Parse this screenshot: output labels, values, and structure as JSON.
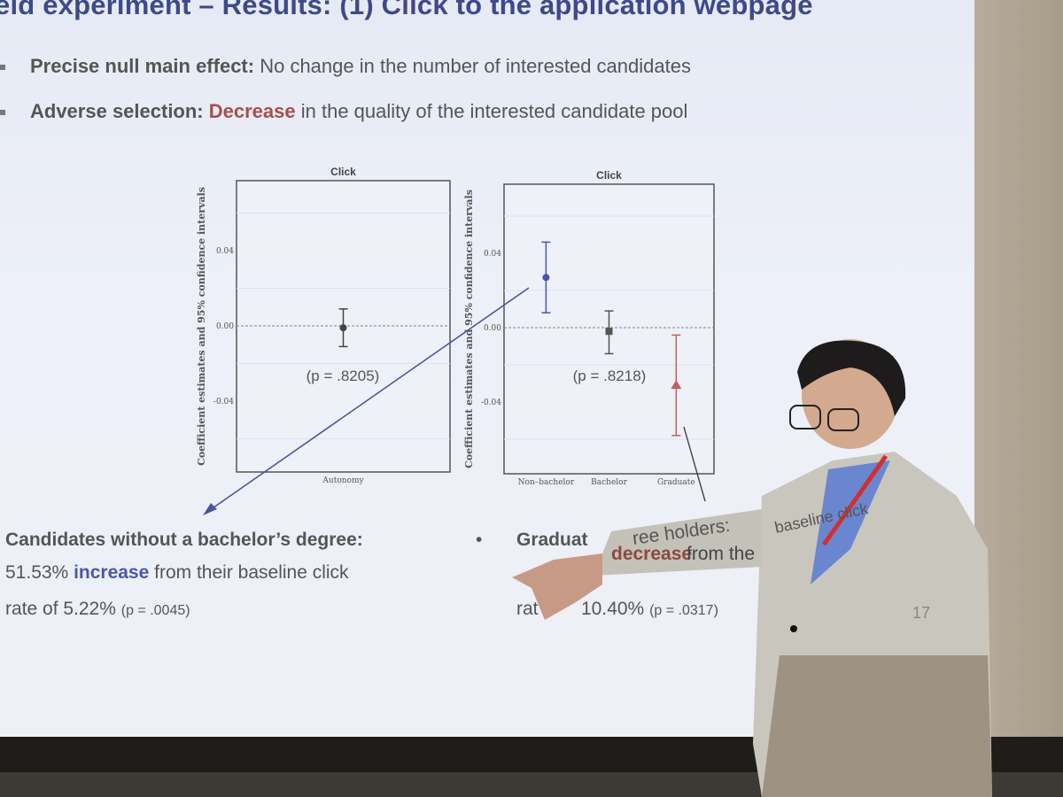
{
  "slide": {
    "title": "eld experiment – Results: (1) Click to the application webpage",
    "bullets": [
      {
        "bold": "Precise null main effect:",
        "text": " No change in the number of interested candidates"
      },
      {
        "bold": "Adverse selection:",
        "highlight": "Decrease",
        "text": " in the quality of the interested candidate pool"
      }
    ],
    "left_note": {
      "line1": "Candidates without a bachelor’s degree:",
      "line2_value": "51.53% ",
      "line2_highlight": "increase",
      "line2_rest": " from their baseline click",
      "line3": "rate of 5.22% ",
      "line3_p": "(p = .0045)"
    },
    "right_note": {
      "bullet": "•",
      "line1": "Graduat",
      "line1b": "ree holders:",
      "line2_highlight": "decrease",
      "line2_rest": " from the",
      "line2b": "baseline click",
      "line3": "rat",
      "line3_value": "10.40% ",
      "line3_p": "(p = .0317)"
    },
    "page_number": "17"
  },
  "chart_data": [
    {
      "type": "scatter",
      "title": "Click",
      "ylabel": "Coefficient estimates and 95% confidence intervals",
      "categories": [
        "Autonomy"
      ],
      "yticks": [
        "0.04",
        "0.00",
        "-0.04"
      ],
      "ylim": [
        -0.078,
        0.075
      ],
      "points": [
        {
          "category": "Autonomy",
          "estimate": -0.001,
          "ci": [
            -0.011,
            0.009
          ],
          "color": "#444444",
          "marker": "circle"
        }
      ],
      "reference_line": 0,
      "annotation": "(p = .8205)",
      "grid": true
    },
    {
      "type": "scatter",
      "title": "Click",
      "ylabel": "Coefficient estimates and 95% confidence intervals",
      "categories": [
        "Non–bachelor",
        "Bachelor",
        "Graduate"
      ],
      "yticks": [
        "0.04",
        "0.00",
        "-0.04"
      ],
      "ylim": [
        -0.078,
        0.075
      ],
      "points": [
        {
          "category": "Non–bachelor",
          "estimate": 0.027,
          "ci": [
            0.008,
            0.046
          ],
          "color": "#4a55b0",
          "marker": "circle"
        },
        {
          "category": "Bachelor",
          "estimate": -0.002,
          "ci": [
            -0.014,
            0.009
          ],
          "color": "#555555",
          "marker": "square"
        },
        {
          "category": "Graduate",
          "estimate": -0.031,
          "ci": [
            -0.058,
            -0.004
          ],
          "color": "#c0605a",
          "marker": "triangle"
        }
      ],
      "reference_line": 0,
      "annotation": "(p = .8218)",
      "grid": true
    }
  ],
  "colors": {
    "title": "#3d4a8a",
    "increase": "#4a58a6",
    "decrease": "#a5504a",
    "slide_bg": "#eceff7",
    "wall": "#b0a592"
  }
}
